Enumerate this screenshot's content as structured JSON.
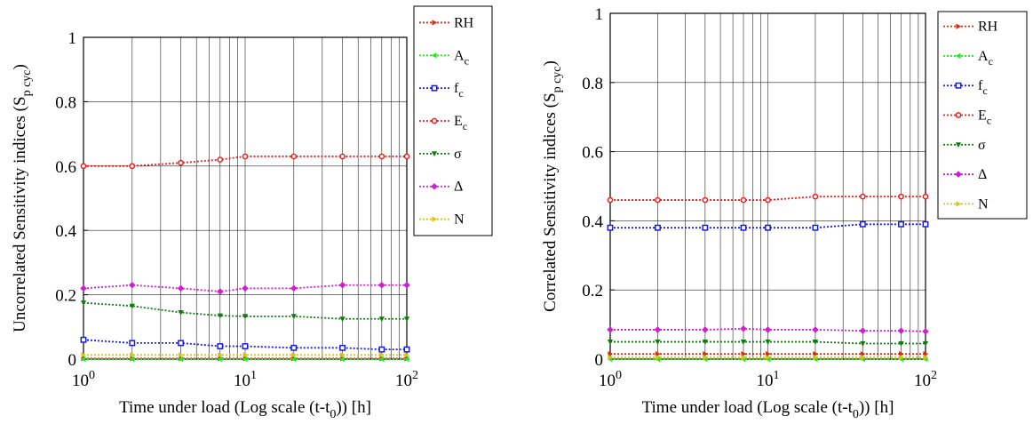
{
  "chart_data": [
    {
      "type": "line",
      "xscale": "log",
      "xlim": [
        1,
        100
      ],
      "ylim": [
        0,
        1
      ],
      "grid": "on",
      "legend_placement": "outside-top-right",
      "xlabel": {
        "main": "Time under load (Log scale (t-t",
        "sub": "0",
        "end": ")) [h]"
      },
      "ylabel": {
        "main": "Uncorrelated Sensitivity indices (S",
        "sub": "p cyc",
        "end": ")"
      },
      "x_ticks": [
        {
          "value": 1,
          "base": "10",
          "exp": "0"
        },
        {
          "value": 10,
          "base": "10",
          "exp": "1"
        },
        {
          "value": 100,
          "base": "10",
          "exp": "2"
        }
      ],
      "y_ticks": [
        "0",
        "0.2",
        "0.4",
        "0.6",
        "0.8",
        "1"
      ],
      "x": [
        1,
        2,
        4,
        7,
        10,
        20,
        40,
        70,
        100
      ],
      "series": [
        {
          "name": "RH",
          "name_sub": "",
          "color": "#dc2a0a",
          "marker": "triangle-right",
          "values": [
            0.002,
            0.002,
            0.002,
            0.002,
            0.002,
            0.002,
            0.002,
            0.002,
            0.002
          ]
        },
        {
          "name": "A",
          "name_sub": "c",
          "color": "#22e622",
          "marker": "triangle-left",
          "values": [
            0.0,
            0.0,
            0.0,
            0.0,
            0.0,
            0.0,
            0.0,
            0.0,
            0.0
          ]
        },
        {
          "name": "f",
          "name_sub": "c",
          "color": "#1a1ae6",
          "marker": "square",
          "values": [
            0.06,
            0.05,
            0.05,
            0.04,
            0.04,
            0.035,
            0.035,
            0.03,
            0.03
          ]
        },
        {
          "name": "E",
          "name_sub": "c",
          "color": "#ee1c1c",
          "marker": "circle",
          "values": [
            0.6,
            0.6,
            0.61,
            0.62,
            0.63,
            0.63,
            0.63,
            0.63,
            0.63
          ]
        },
        {
          "name": "σ",
          "name_sub": "",
          "color": "#127a12",
          "marker": "triangle-down",
          "values": [
            0.175,
            0.165,
            0.145,
            0.135,
            0.133,
            0.133,
            0.125,
            0.125,
            0.125
          ]
        },
        {
          "name": "Δ",
          "name_sub": "",
          "color": "#d21ed2",
          "marker": "diamond",
          "values": [
            0.22,
            0.23,
            0.22,
            0.21,
            0.22,
            0.22,
            0.23,
            0.23,
            0.23
          ]
        },
        {
          "name": "N",
          "name_sub": "",
          "color": "#d6c21a",
          "marker": "triangle-right",
          "values": [
            0.013,
            0.013,
            0.013,
            0.013,
            0.013,
            0.013,
            0.013,
            0.013,
            0.013
          ]
        }
      ]
    },
    {
      "type": "line",
      "xscale": "log",
      "xlim": [
        1,
        100
      ],
      "ylim": [
        0,
        1
      ],
      "grid": "on",
      "legend_placement": "outside-top-right",
      "xlabel": {
        "main": "Time under load (Log scale (t-t",
        "sub": "0",
        "end": ")) [h]"
      },
      "ylabel": {
        "main": "Correlated Sensitivity indices (S",
        "sub": "p cyc",
        "end": ")"
      },
      "x_ticks": [
        {
          "value": 1,
          "base": "10",
          "exp": "0"
        },
        {
          "value": 10,
          "base": "10",
          "exp": "1"
        },
        {
          "value": 100,
          "base": "10",
          "exp": "2"
        }
      ],
      "y_ticks": [
        "0",
        "0.2",
        "0.4",
        "0.6",
        "0.8",
        "1"
      ],
      "x": [
        1,
        2,
        4,
        7,
        10,
        20,
        40,
        70,
        100
      ],
      "series": [
        {
          "name": "RH",
          "name_sub": "",
          "color": "#dc2a0a",
          "marker": "triangle-right",
          "values": [
            0.015,
            0.015,
            0.015,
            0.015,
            0.015,
            0.015,
            0.015,
            0.015,
            0.015
          ]
        },
        {
          "name": "A",
          "name_sub": "c",
          "color": "#22e622",
          "marker": "triangle-left",
          "values": [
            0.0,
            0.0,
            0.0,
            0.0,
            0.0,
            0.0,
            0.0,
            0.0,
            0.0
          ]
        },
        {
          "name": "f",
          "name_sub": "c",
          "color": "#1a1ae6",
          "marker": "square",
          "values": [
            0.38,
            0.38,
            0.38,
            0.38,
            0.38,
            0.38,
            0.39,
            0.39,
            0.39
          ]
        },
        {
          "name": "E",
          "name_sub": "c",
          "color": "#ee1c1c",
          "marker": "circle",
          "values": [
            0.46,
            0.46,
            0.46,
            0.46,
            0.46,
            0.47,
            0.47,
            0.47,
            0.47
          ]
        },
        {
          "name": "σ",
          "name_sub": "",
          "color": "#127a12",
          "marker": "triangle-down",
          "values": [
            0.05,
            0.05,
            0.05,
            0.05,
            0.05,
            0.05,
            0.045,
            0.045,
            0.045
          ]
        },
        {
          "name": "Δ",
          "name_sub": "",
          "color": "#d21ed2",
          "marker": "diamond",
          "values": [
            0.085,
            0.085,
            0.085,
            0.088,
            0.085,
            0.085,
            0.082,
            0.082,
            0.08
          ]
        },
        {
          "name": "N",
          "name_sub": "",
          "color": "#d6c21a",
          "marker": "triangle-right",
          "values": [
            0.005,
            0.005,
            0.005,
            0.005,
            0.005,
            0.005,
            0.005,
            0.005,
            0.005
          ]
        }
      ]
    }
  ]
}
